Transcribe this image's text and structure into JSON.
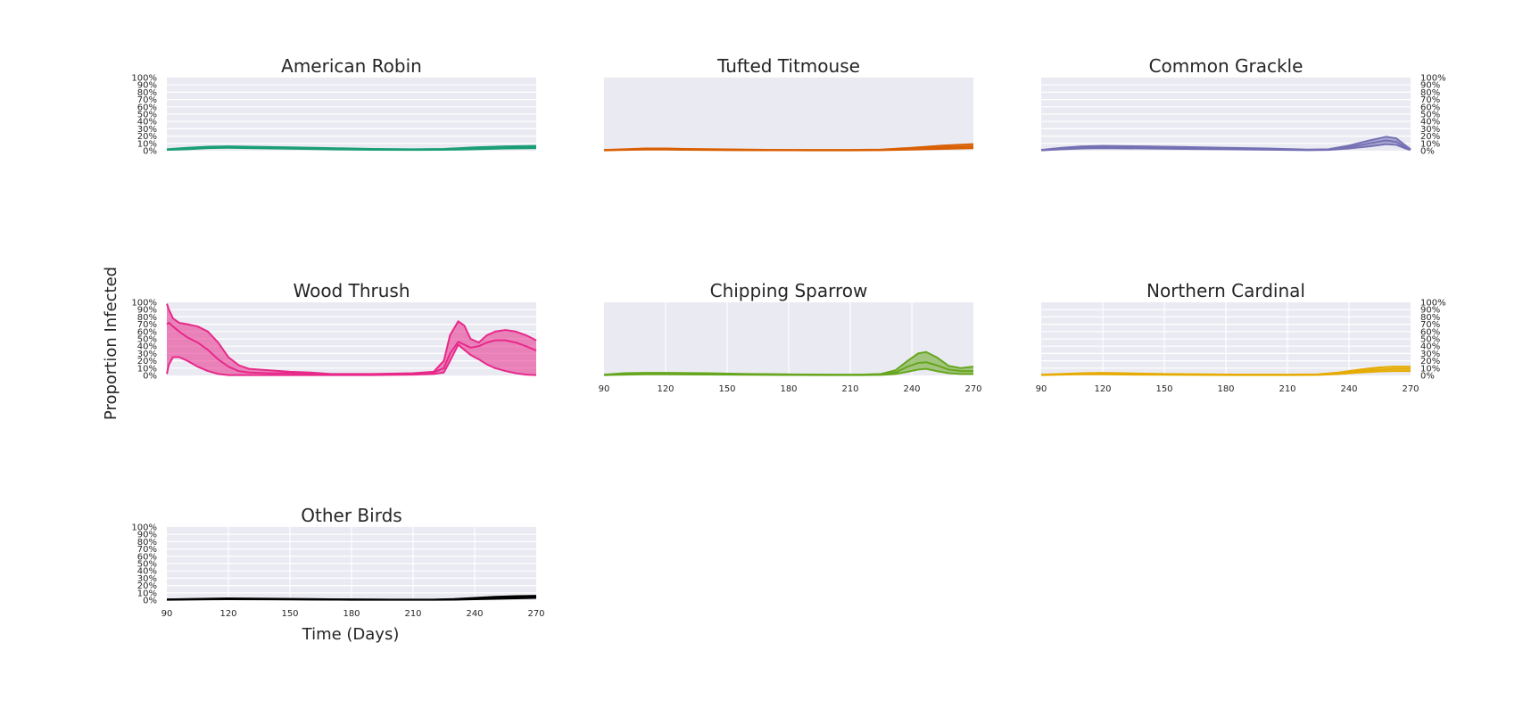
{
  "chart_data": {
    "type": "area",
    "figure": {
      "xlabel": "Time (Days)",
      "ylabel": "Proportion Infected"
    },
    "x_ticks": [
      90,
      120,
      150,
      180,
      210,
      240,
      270
    ],
    "y_ticks": [
      "0%",
      "10%",
      "20%",
      "30%",
      "40%",
      "50%",
      "60%",
      "70%",
      "80%",
      "90%",
      "100%"
    ],
    "xlim": [
      90,
      270
    ],
    "ylim": [
      0,
      1
    ],
    "grid": true,
    "panels": [
      {
        "title": "American Robin",
        "color": "#1b9e77",
        "show_yticks": "left",
        "show_xticks": false,
        "x": [
          90,
          100,
          110,
          120,
          130,
          150,
          170,
          190,
          210,
          225,
          240,
          255,
          270
        ],
        "upper": [
          0.02,
          0.04,
          0.055,
          0.06,
          0.055,
          0.045,
          0.035,
          0.025,
          0.02,
          0.025,
          0.045,
          0.06,
          0.065
        ],
        "mid": [
          0.015,
          0.03,
          0.045,
          0.05,
          0.045,
          0.035,
          0.025,
          0.018,
          0.015,
          0.018,
          0.03,
          0.045,
          0.05
        ],
        "lower": [
          0.01,
          0.02,
          0.035,
          0.04,
          0.035,
          0.028,
          0.018,
          0.012,
          0.01,
          0.012,
          0.02,
          0.03,
          0.035
        ]
      },
      {
        "title": "Tufted Titmouse",
        "color": "#d95f02",
        "show_yticks": "none",
        "show_xticks": false,
        "x": [
          90,
          100,
          110,
          120,
          130,
          150,
          170,
          190,
          210,
          225,
          240,
          255,
          270
        ],
        "upper": [
          0.01,
          0.02,
          0.03,
          0.03,
          0.025,
          0.018,
          0.012,
          0.01,
          0.01,
          0.015,
          0.04,
          0.07,
          0.09
        ],
        "mid": [
          0.008,
          0.015,
          0.022,
          0.022,
          0.018,
          0.012,
          0.009,
          0.008,
          0.008,
          0.01,
          0.025,
          0.045,
          0.06
        ],
        "lower": [
          0.005,
          0.01,
          0.015,
          0.015,
          0.012,
          0.008,
          0.006,
          0.005,
          0.005,
          0.007,
          0.015,
          0.025,
          0.035
        ]
      },
      {
        "title": "Common Grackle",
        "color": "#7570b3",
        "show_yticks": "right",
        "show_xticks": false,
        "x": [
          90,
          100,
          110,
          120,
          140,
          160,
          180,
          200,
          220,
          230,
          240,
          250,
          258,
          263,
          268,
          270
        ],
        "upper": [
          0.01,
          0.04,
          0.06,
          0.065,
          0.06,
          0.05,
          0.04,
          0.03,
          0.015,
          0.02,
          0.07,
          0.14,
          0.19,
          0.17,
          0.06,
          0.02
        ],
        "mid": [
          0.008,
          0.03,
          0.045,
          0.05,
          0.045,
          0.038,
          0.03,
          0.02,
          0.01,
          0.015,
          0.05,
          0.1,
          0.14,
          0.12,
          0.04,
          0.015
        ],
        "lower": [
          0.005,
          0.02,
          0.03,
          0.035,
          0.03,
          0.025,
          0.02,
          0.013,
          0.007,
          0.01,
          0.03,
          0.06,
          0.09,
          0.08,
          0.025,
          0.01
        ]
      },
      {
        "title": "Wood Thrush",
        "color": "#e7298a",
        "show_yticks": "left",
        "show_xticks": false,
        "x": [
          90,
          91,
          93,
          96,
          100,
          105,
          110,
          115,
          120,
          125,
          130,
          140,
          150,
          160,
          170,
          190,
          210,
          220,
          225,
          228,
          232,
          235,
          238,
          242,
          246,
          250,
          255,
          260,
          265,
          270
        ],
        "upper": [
          0.98,
          0.9,
          0.78,
          0.72,
          0.7,
          0.67,
          0.6,
          0.45,
          0.25,
          0.14,
          0.09,
          0.07,
          0.05,
          0.04,
          0.02,
          0.02,
          0.03,
          0.05,
          0.2,
          0.55,
          0.74,
          0.68,
          0.5,
          0.45,
          0.55,
          0.6,
          0.62,
          0.6,
          0.55,
          0.48
        ],
        "mid": [
          0.7,
          0.72,
          0.67,
          0.6,
          0.52,
          0.45,
          0.35,
          0.22,
          0.12,
          0.06,
          0.04,
          0.03,
          0.03,
          0.02,
          0.015,
          0.015,
          0.02,
          0.04,
          0.1,
          0.3,
          0.46,
          0.42,
          0.38,
          0.4,
          0.45,
          0.48,
          0.48,
          0.45,
          0.4,
          0.34
        ],
        "lower": [
          0.02,
          0.15,
          0.25,
          0.25,
          0.2,
          0.12,
          0.06,
          0.02,
          0.005,
          0.005,
          0.005,
          0.005,
          0.005,
          0.005,
          0.005,
          0.005,
          0.01,
          0.02,
          0.04,
          0.2,
          0.42,
          0.35,
          0.28,
          0.22,
          0.15,
          0.1,
          0.06,
          0.03,
          0.01,
          0.005
        ]
      },
      {
        "title": "Chipping Sparrow",
        "color": "#66a61e",
        "show_yticks": "none",
        "show_xticks": true,
        "x": [
          90,
          100,
          110,
          120,
          140,
          160,
          180,
          200,
          215,
          225,
          232,
          238,
          243,
          247,
          252,
          258,
          264,
          270
        ],
        "upper": [
          0.01,
          0.03,
          0.035,
          0.035,
          0.03,
          0.02,
          0.015,
          0.01,
          0.01,
          0.02,
          0.07,
          0.2,
          0.3,
          0.32,
          0.25,
          0.13,
          0.1,
          0.12
        ],
        "mid": [
          0.008,
          0.02,
          0.025,
          0.025,
          0.02,
          0.015,
          0.01,
          0.008,
          0.008,
          0.015,
          0.04,
          0.12,
          0.17,
          0.18,
          0.14,
          0.08,
          0.06,
          0.06
        ],
        "lower": [
          0.005,
          0.01,
          0.015,
          0.015,
          0.012,
          0.009,
          0.006,
          0.005,
          0.005,
          0.008,
          0.02,
          0.05,
          0.08,
          0.09,
          0.06,
          0.03,
          0.02,
          0.02
        ]
      },
      {
        "title": "Northern Cardinal",
        "color": "#e6ab02",
        "show_yticks": "right",
        "show_xticks": true,
        "x": [
          90,
          100,
          110,
          120,
          130,
          150,
          170,
          190,
          210,
          225,
          235,
          245,
          255,
          262,
          270
        ],
        "upper": [
          0.01,
          0.02,
          0.03,
          0.035,
          0.03,
          0.02,
          0.015,
          0.01,
          0.01,
          0.015,
          0.04,
          0.08,
          0.11,
          0.12,
          0.12
        ],
        "mid": [
          0.008,
          0.015,
          0.022,
          0.025,
          0.022,
          0.015,
          0.01,
          0.008,
          0.008,
          0.01,
          0.03,
          0.06,
          0.08,
          0.09,
          0.09
        ],
        "lower": [
          0.005,
          0.01,
          0.015,
          0.015,
          0.012,
          0.009,
          0.006,
          0.005,
          0.005,
          0.007,
          0.02,
          0.04,
          0.055,
          0.06,
          0.06
        ]
      },
      {
        "title": "Other Birds",
        "color": "#000000",
        "show_yticks": "left",
        "show_xticks": true,
        "x": [
          90,
          100,
          110,
          120,
          140,
          160,
          180,
          200,
          220,
          230,
          240,
          250,
          260,
          270
        ],
        "upper": [
          0.01,
          0.015,
          0.02,
          0.025,
          0.02,
          0.015,
          0.01,
          0.008,
          0.008,
          0.015,
          0.03,
          0.045,
          0.055,
          0.06
        ],
        "mid": [
          0.008,
          0.012,
          0.015,
          0.018,
          0.015,
          0.011,
          0.008,
          0.006,
          0.006,
          0.01,
          0.02,
          0.03,
          0.04,
          0.045
        ],
        "lower": [
          0.005,
          0.008,
          0.01,
          0.012,
          0.01,
          0.007,
          0.005,
          0.004,
          0.004,
          0.006,
          0.012,
          0.018,
          0.025,
          0.03
        ]
      }
    ]
  }
}
